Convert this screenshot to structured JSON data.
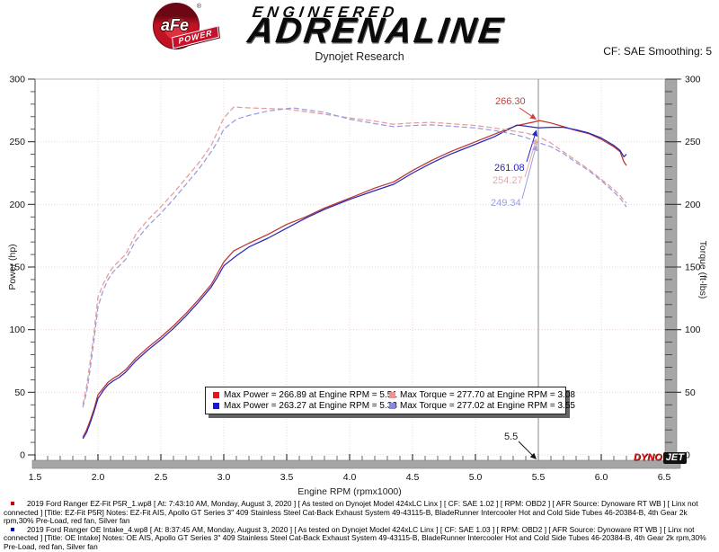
{
  "header": {
    "logo_text": "aFe",
    "logo_banner": "POWER",
    "logo_registered": "®",
    "brand_top": "ENGINEERED",
    "brand_main": "ADRENALINE",
    "title": "Dynojet Research",
    "smoothing": "CF: SAE Smoothing: 5"
  },
  "watermark": {
    "dyno": "DYNO",
    "jet": "JET"
  },
  "chart_data": {
    "type": "line",
    "title": "Dynojet Research",
    "xlabel": "Engine RPM (rpmx1000)",
    "ylabel_left": "Power (hp)",
    "ylabel_right": "Torque (ft-lbs)",
    "x_range": [
      1.5,
      6.5
    ],
    "y_range": [
      0,
      300
    ],
    "x_ticks": [
      "1.5",
      "2.0",
      "2.5",
      "3.0",
      "3.5",
      "4.0",
      "4.5",
      "5.0",
      "5.5",
      "6.0",
      "6.5"
    ],
    "y_ticks": [
      "0",
      "50",
      "100",
      "150",
      "200",
      "250",
      "300"
    ],
    "x_minor_step": 0.1,
    "y_minor_step": 10,
    "grid": true,
    "legend_position": "bottom-center-inside",
    "cursor": {
      "rpm": 5.5,
      "label": "5.5"
    },
    "cursor_markers": [
      {
        "label": "266.30",
        "value": 266.3,
        "color": "#cf4040",
        "series": "EZ-Fit Power"
      },
      {
        "label": "261.08",
        "value": 261.08,
        "color": "#2525cc",
        "series": "OE Power"
      },
      {
        "label": "254.27",
        "value": 254.27,
        "color": "#e8a8a8",
        "series": "EZ-Fit Torque"
      },
      {
        "label": "249.34",
        "value": 249.34,
        "color": "#9aa0e0",
        "series": "OE Torque"
      }
    ],
    "series": [
      {
        "name": "EZ-Fit Power (hp)",
        "color": "#bc3434",
        "dash": false,
        "axis": "left",
        "points": [
          [
            1.88,
            14
          ],
          [
            1.91,
            20
          ],
          [
            1.94,
            28
          ],
          [
            1.97,
            37
          ],
          [
            2.0,
            48
          ],
          [
            2.04,
            53
          ],
          [
            2.08,
            58
          ],
          [
            2.12,
            61
          ],
          [
            2.17,
            64
          ],
          [
            2.22,
            68
          ],
          [
            2.3,
            77
          ],
          [
            2.4,
            86
          ],
          [
            2.5,
            94
          ],
          [
            2.6,
            103
          ],
          [
            2.7,
            113
          ],
          [
            2.8,
            124
          ],
          [
            2.9,
            136
          ],
          [
            2.95,
            145
          ],
          [
            3.0,
            154
          ],
          [
            3.08,
            163
          ],
          [
            3.2,
            169
          ],
          [
            3.35,
            176
          ],
          [
            3.5,
            184
          ],
          [
            3.65,
            190
          ],
          [
            3.8,
            197
          ],
          [
            4.0,
            205
          ],
          [
            4.2,
            213
          ],
          [
            4.35,
            218
          ],
          [
            4.5,
            227
          ],
          [
            4.65,
            235
          ],
          [
            4.8,
            242
          ],
          [
            5.0,
            250
          ],
          [
            5.15,
            256
          ],
          [
            5.33,
            263
          ],
          [
            5.45,
            265.5
          ],
          [
            5.51,
            266.9
          ],
          [
            5.6,
            265
          ],
          [
            5.7,
            262
          ],
          [
            5.8,
            259
          ],
          [
            5.9,
            256.5
          ],
          [
            6.0,
            252
          ],
          [
            6.05,
            249
          ],
          [
            6.1,
            246
          ],
          [
            6.15,
            242
          ],
          [
            6.18,
            234
          ],
          [
            6.2,
            231
          ]
        ]
      },
      {
        "name": "OE Power (hp)",
        "color": "#2a2ab8",
        "dash": false,
        "axis": "left",
        "points": [
          [
            1.88,
            13
          ],
          [
            1.91,
            18
          ],
          [
            1.94,
            26
          ],
          [
            1.97,
            35
          ],
          [
            2.0,
            45
          ],
          [
            2.04,
            51
          ],
          [
            2.08,
            56
          ],
          [
            2.12,
            59
          ],
          [
            2.17,
            62
          ],
          [
            2.22,
            66
          ],
          [
            2.3,
            75
          ],
          [
            2.4,
            84
          ],
          [
            2.5,
            92
          ],
          [
            2.6,
            101
          ],
          [
            2.7,
            111
          ],
          [
            2.8,
            122
          ],
          [
            2.9,
            134
          ],
          [
            2.95,
            142
          ],
          [
            3.0,
            151
          ],
          [
            3.1,
            159
          ],
          [
            3.2,
            166
          ],
          [
            3.35,
            173
          ],
          [
            3.5,
            181
          ],
          [
            3.65,
            189
          ],
          [
            3.8,
            196
          ],
          [
            4.0,
            204
          ],
          [
            4.2,
            211
          ],
          [
            4.35,
            216
          ],
          [
            4.5,
            225
          ],
          [
            4.65,
            233
          ],
          [
            4.8,
            240
          ],
          [
            5.0,
            248
          ],
          [
            5.15,
            254
          ],
          [
            5.33,
            263.3
          ],
          [
            5.4,
            262.5
          ],
          [
            5.5,
            261.1
          ],
          [
            5.6,
            261.5
          ],
          [
            5.7,
            261.5
          ],
          [
            5.8,
            259.5
          ],
          [
            5.9,
            257
          ],
          [
            6.0,
            253
          ],
          [
            6.1,
            247
          ],
          [
            6.15,
            243
          ],
          [
            6.18,
            238
          ],
          [
            6.2,
            240
          ]
        ]
      },
      {
        "name": "EZ-Fit Torque (ft-lbs)",
        "color": "#e49c9c",
        "dash": true,
        "axis": "right",
        "points": [
          [
            1.88,
            40
          ],
          [
            1.91,
            55
          ],
          [
            1.94,
            76
          ],
          [
            1.97,
            99
          ],
          [
            2.0,
            126
          ],
          [
            2.04,
            136
          ],
          [
            2.08,
            144
          ],
          [
            2.12,
            150
          ],
          [
            2.17,
            155
          ],
          [
            2.22,
            160
          ],
          [
            2.3,
            176
          ],
          [
            2.4,
            188
          ],
          [
            2.5,
            198
          ],
          [
            2.6,
            209
          ],
          [
            2.7,
            221
          ],
          [
            2.8,
            233
          ],
          [
            2.9,
            247
          ],
          [
            2.95,
            258
          ],
          [
            3.0,
            269
          ],
          [
            3.08,
            277.7
          ],
          [
            3.2,
            277
          ],
          [
            3.35,
            276.5
          ],
          [
            3.5,
            276
          ],
          [
            3.65,
            274
          ],
          [
            3.8,
            272
          ],
          [
            4.0,
            269
          ],
          [
            4.2,
            266.5
          ],
          [
            4.35,
            264
          ],
          [
            4.5,
            265
          ],
          [
            4.65,
            265.5
          ],
          [
            4.8,
            264.5
          ],
          [
            5.0,
            263
          ],
          [
            5.15,
            261
          ],
          [
            5.3,
            258.5
          ],
          [
            5.4,
            257
          ],
          [
            5.5,
            254.3
          ],
          [
            5.6,
            249
          ],
          [
            5.7,
            242
          ],
          [
            5.8,
            235
          ],
          [
            5.9,
            228
          ],
          [
            6.0,
            220
          ],
          [
            6.1,
            212
          ],
          [
            6.15,
            207
          ],
          [
            6.2,
            201
          ]
        ]
      },
      {
        "name": "OE Torque (ft-lbs)",
        "color": "#9c9cdd",
        "dash": true,
        "axis": "right",
        "points": [
          [
            1.88,
            38
          ],
          [
            1.91,
            50
          ],
          [
            1.94,
            70
          ],
          [
            1.97,
            93
          ],
          [
            2.0,
            118
          ],
          [
            2.04,
            131
          ],
          [
            2.08,
            140
          ],
          [
            2.12,
            146
          ],
          [
            2.17,
            151
          ],
          [
            2.22,
            156
          ],
          [
            2.3,
            171
          ],
          [
            2.4,
            183
          ],
          [
            2.5,
            193
          ],
          [
            2.6,
            204
          ],
          [
            2.7,
            216
          ],
          [
            2.8,
            228
          ],
          [
            2.9,
            242
          ],
          [
            2.95,
            250
          ],
          [
            3.0,
            260
          ],
          [
            3.1,
            268
          ],
          [
            3.2,
            271
          ],
          [
            3.35,
            274.5
          ],
          [
            3.55,
            277
          ],
          [
            3.65,
            275.5
          ],
          [
            3.8,
            273.5
          ],
          [
            4.0,
            268
          ],
          [
            4.2,
            264.5
          ],
          [
            4.35,
            262
          ],
          [
            4.5,
            263
          ],
          [
            4.65,
            263.5
          ],
          [
            4.8,
            262.5
          ],
          [
            5.0,
            261
          ],
          [
            5.15,
            259
          ],
          [
            5.3,
            256
          ],
          [
            5.4,
            253.5
          ],
          [
            5.5,
            249.3
          ],
          [
            5.6,
            246
          ],
          [
            5.7,
            240.5
          ],
          [
            5.8,
            233.5
          ],
          [
            5.9,
            227
          ],
          [
            6.0,
            219
          ],
          [
            6.1,
            210
          ],
          [
            6.15,
            205
          ],
          [
            6.2,
            198
          ]
        ]
      }
    ]
  },
  "legend": {
    "items": [
      {
        "label": "Max Power = 266.89 at Engine RPM = 5.51",
        "color": "#e01818"
      },
      {
        "label": "Max Torque = 277.70 at Engine RPM = 3.08",
        "color": "#f09090"
      },
      {
        "label": "Max Power = 263.27 at Engine RPM = 5.33",
        "color": "#1818d0"
      },
      {
        "label": "Max Torque = 277.02 at Engine RPM = 3.55",
        "color": "#8888e0"
      }
    ]
  },
  "footer": {
    "lines": [
      {
        "bullet_color": "#cc0000",
        "text": "2019 Ford Ranger EZ-Fit P5R_1.wp8 [ At: 7:43:10 AM, Monday, August 3, 2020 ] [ As tested on Dynojet Model 424xLC Linx ] [ CF: SAE 1.02 ] [ RPM: OBD2 ] [ AFR Source: Dynoware RT WB ] [ Linx not connected ] [Title: EZ-Fit P5R]  Notes:  EZ-Fit AIS, Apollo GT Series 3\" 409 Stainless Steel Cat-Back Exhaust System  49-43115-B, BladeRunner Intercooler Hot and Cold Side Tubes 46-20384-B, 4th Gear 2k rpm,30% Pre-Load, red fan, Silver fan"
      },
      {
        "bullet_color": "#0000cc",
        "text": "2019 Ford Ranger OE Intake_4.wp8 [ At: 8:37:45 AM, Monday, August 3, 2020 ] [ As tested on Dynojet Model 424xLC Linx ] [ CF: SAE 1.03 ] [ RPM: OBD2 ] [ AFR Source: Dynoware RT WB ] [ Linx not connected ] [Title: OE Intake]  Notes: OE AIS, Apollo GT Series 3\" 409 Stainless Steel Cat-Back Exhaust System  49-43115-B, BladeRunner Intercooler Hot and Cold Side Tubes 46-20384-B, 4th Gear 2k rpm,30% Pre-Load, red fan, Silver fan"
      }
    ]
  }
}
